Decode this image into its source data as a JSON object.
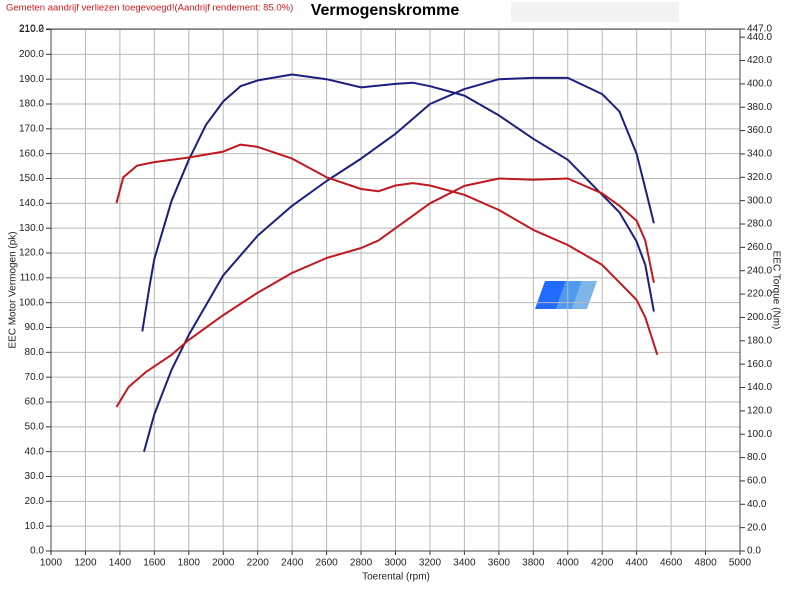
{
  "chart_data": {
    "type": "line",
    "title": "Vermogenskromme",
    "subtitle": "Gemeten aandrijf verliezen toegevoegd!(Aandrijf rendement: 85.0%)",
    "x_label": "Toerental (rpm)",
    "y_label": "EEC Motor Vermogen (pk)",
    "y2_label": "EEC Torque (Nm)",
    "grid": true,
    "xlim": [
      1000,
      5000
    ],
    "xticks": [
      1000,
      1200,
      1400,
      1600,
      1800,
      2000,
      2200,
      2400,
      2600,
      2800,
      3000,
      3200,
      3400,
      3600,
      3800,
      4000,
      4200,
      4400,
      4600,
      4800,
      5000
    ],
    "ylim": [
      0,
      210.2
    ],
    "yticks": [
      {
        "value": 0,
        "label": "0.0"
      },
      {
        "value": 10,
        "label": "10.0"
      },
      {
        "value": 20,
        "label": "20.0"
      },
      {
        "value": 30,
        "label": "30.0"
      },
      {
        "value": 40,
        "label": "40.0"
      },
      {
        "value": 50,
        "label": "50.0"
      },
      {
        "value": 60,
        "label": "60.0"
      },
      {
        "value": 70,
        "label": "70.0"
      },
      {
        "value": 80,
        "label": "80.0"
      },
      {
        "value": 90,
        "label": "90.0"
      },
      {
        "value": 100,
        "label": "100.0"
      },
      {
        "value": 110,
        "label": "110.0"
      },
      {
        "value": 120,
        "label": "120.0"
      },
      {
        "value": 130,
        "label": "130.0"
      },
      {
        "value": 140,
        "label": "140.0"
      },
      {
        "value": 150,
        "label": "150.0"
      },
      {
        "value": 160,
        "label": "160.0"
      },
      {
        "value": 170,
        "label": "170.0"
      },
      {
        "value": 180,
        "label": "180.0"
      },
      {
        "value": 190,
        "label": "190.0"
      },
      {
        "value": 200,
        "label": "200.0"
      },
      {
        "value": 210,
        "label": "210.0"
      },
      {
        "value": 210.2,
        "label": "210.2"
      }
    ],
    "y2lim": [
      0,
      447
    ],
    "y2ticks": [
      {
        "value": 0,
        "label": "0.0"
      },
      {
        "value": 20,
        "label": "20.0"
      },
      {
        "value": 40,
        "label": "40.0"
      },
      {
        "value": 60,
        "label": "60.0"
      },
      {
        "value": 80,
        "label": "80.0"
      },
      {
        "value": 100,
        "label": "100.0"
      },
      {
        "value": 120,
        "label": "120.0"
      },
      {
        "value": 140,
        "label": "140.0"
      },
      {
        "value": 160,
        "label": "160.0"
      },
      {
        "value": 180,
        "label": "180.0"
      },
      {
        "value": 200,
        "label": "200.0"
      },
      {
        "value": 220,
        "label": "220.0"
      },
      {
        "value": 240,
        "label": "240.0"
      },
      {
        "value": 260,
        "label": "260.0"
      },
      {
        "value": 280,
        "label": "280.0"
      },
      {
        "value": 300,
        "label": "300.0"
      },
      {
        "value": 320,
        "label": "320.0"
      },
      {
        "value": 340,
        "label": "340.0"
      },
      {
        "value": 360,
        "label": "360.0"
      },
      {
        "value": 380,
        "label": "380.0"
      },
      {
        "value": 400,
        "label": "400.0"
      },
      {
        "value": 420,
        "label": "420.0"
      },
      {
        "value": 440,
        "label": "440.0"
      },
      {
        "value": 447,
        "label": "447.0"
      }
    ],
    "series": [
      {
        "color": "#1c1f7e",
        "axis": "y",
        "x": [
          1540,
          1600,
          1700,
          1800,
          2000,
          2200,
          2400,
          2600,
          2800,
          3000,
          3200,
          3400,
          3600,
          3800,
          4000,
          4200,
          4300,
          4400,
          4450,
          4500
        ],
        "values": [
          40,
          55,
          73,
          87,
          111,
          127,
          139,
          149,
          158,
          168,
          180,
          186,
          190,
          190.5,
          190.5,
          184,
          177,
          160,
          146,
          132
        ]
      },
      {
        "color": "#1c1f7e",
        "axis": "y2",
        "x": [
          1530,
          1570,
          1600,
          1700,
          1800,
          1900,
          2000,
          2100,
          2200,
          2400,
          2600,
          2800,
          3000,
          3100,
          3200,
          3400,
          3600,
          3800,
          4000,
          4200,
          4300,
          4400,
          4450,
          4500
        ],
        "values": [
          188,
          225,
          250,
          300,
          335,
          365,
          385,
          398,
          403,
          408,
          404,
          397,
          400,
          401,
          398,
          390,
          373,
          353,
          335,
          305,
          290,
          265,
          245,
          205
        ]
      },
      {
        "color": "#c0191e",
        "axis": "y",
        "x": [
          1380,
          1450,
          1550,
          1700,
          1800,
          2000,
          2200,
          2400,
          2600,
          2800,
          2900,
          3000,
          3200,
          3400,
          3600,
          3800,
          4000,
          4200,
          4300,
          4400,
          4450,
          4500
        ],
        "values": [
          58,
          66,
          72,
          79,
          85,
          95,
          104,
          112,
          118,
          122,
          125,
          130,
          140,
          147,
          150,
          149.5,
          150,
          144,
          139,
          133,
          125,
          108
        ]
      },
      {
        "color": "#c0191e",
        "axis": "y2",
        "x": [
          1380,
          1420,
          1500,
          1600,
          1800,
          2000,
          2100,
          2200,
          2400,
          2600,
          2800,
          2900,
          3000,
          3100,
          3200,
          3400,
          3600,
          3800,
          4000,
          4200,
          4300,
          4400,
          4450,
          4520
        ],
        "values": [
          298,
          320,
          330,
          333,
          337,
          342,
          348,
          346,
          336,
          320,
          310,
          308,
          313,
          315,
          313,
          305,
          292,
          275,
          262,
          245,
          230,
          215,
          200,
          168
        ]
      }
    ]
  }
}
